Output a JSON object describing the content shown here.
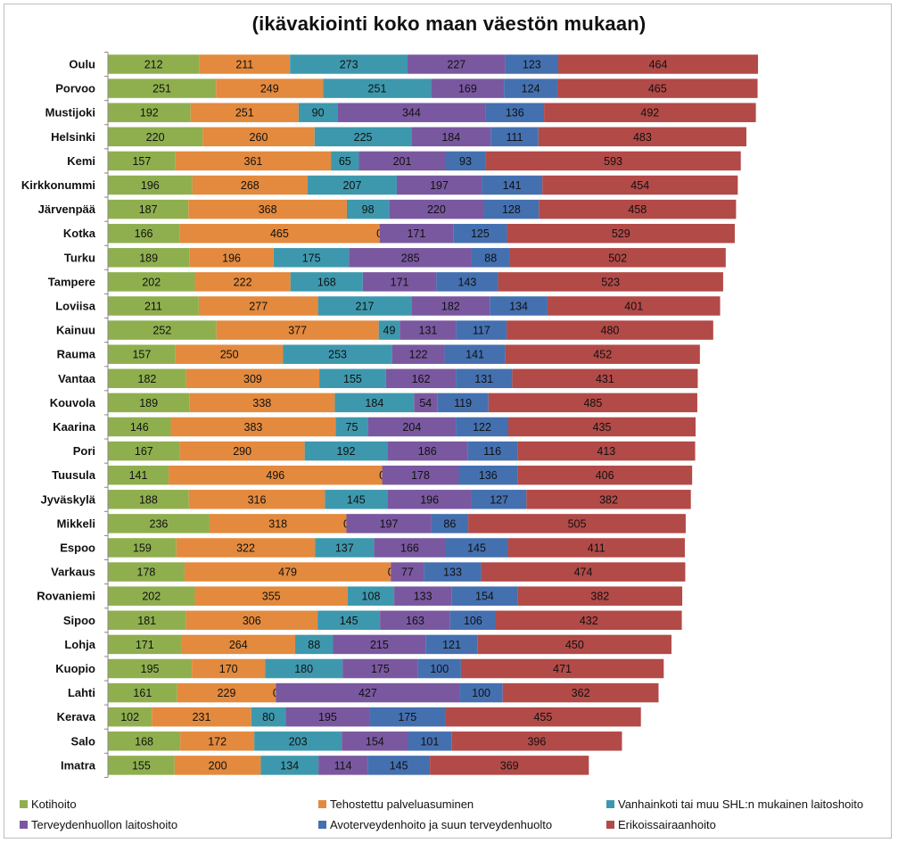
{
  "chart_data": {
    "type": "bar",
    "orientation": "horizontal",
    "stacked": true,
    "title": "(ikävakiointi koko maan väestön mukaan)",
    "categories": [
      "Oulu",
      "Porvoo",
      "Mustijoki",
      "Helsinki",
      "Kemi",
      "Kirkkonummi",
      "Järvenpää",
      "Kotka",
      "Turku",
      "Tampere",
      "Loviisa",
      "Kainuu",
      "Rauma",
      "Vantaa",
      "Kouvola",
      "Kaarina",
      "Pori",
      "Tuusula",
      "Jyväskylä",
      "Mikkeli",
      "Espoo",
      "Varkaus",
      "Rovaniemi",
      "Sipoo",
      "Lohja",
      "Kuopio",
      "Lahti",
      "Kerava",
      "Salo",
      "Imatra"
    ],
    "series": [
      {
        "name": "Kotihoito",
        "color": "#8faf4f",
        "values": [
          212,
          251,
          192,
          220,
          157,
          196,
          187,
          166,
          189,
          202,
          211,
          252,
          157,
          182,
          189,
          146,
          167,
          141,
          188,
          236,
          159,
          178,
          202,
          181,
          171,
          195,
          161,
          102,
          168,
          155
        ]
      },
      {
        "name": "Tehostettu palveluasuminen",
        "color": "#e38a3e",
        "values": [
          211,
          249,
          251,
          260,
          361,
          268,
          368,
          465,
          196,
          222,
          277,
          377,
          250,
          309,
          338,
          383,
          290,
          496,
          316,
          318,
          322,
          479,
          355,
          306,
          264,
          170,
          229,
          231,
          172,
          200
        ]
      },
      {
        "name": "Vanhainkoti tai muu SHL:n mukainen laitoshoito",
        "color": "#3e98ad",
        "values": [
          273,
          251,
          90,
          225,
          65,
          207,
          98,
          0,
          175,
          168,
          217,
          49,
          253,
          155,
          184,
          75,
          192,
          0,
          145,
          0,
          137,
          0,
          108,
          145,
          88,
          180,
          0,
          80,
          203,
          134
        ]
      },
      {
        "name": "Terveydenhuollon laitoshoito",
        "color": "#7a58a0",
        "values": [
          227,
          169,
          344,
          184,
          201,
          197,
          220,
          171,
          285,
          171,
          182,
          131,
          122,
          162,
          54,
          204,
          186,
          178,
          196,
          197,
          166,
          77,
          133,
          163,
          215,
          175,
          427,
          195,
          154,
          114
        ]
      },
      {
        "name": "Avoterveydenhoito ja suun terveydenhuolto",
        "color": "#4470b0",
        "values": [
          123,
          124,
          136,
          111,
          93,
          141,
          128,
          125,
          88,
          143,
          134,
          117,
          141,
          131,
          119,
          122,
          116,
          136,
          127,
          86,
          145,
          133,
          154,
          106,
          121,
          100,
          100,
          175,
          101,
          145
        ]
      },
      {
        "name": "Erikoissairaanhoito",
        "color": "#b24a48",
        "values": [
          464,
          465,
          492,
          483,
          593,
          454,
          458,
          529,
          502,
          523,
          401,
          480,
          452,
          431,
          485,
          435,
          413,
          406,
          382,
          505,
          411,
          474,
          382,
          432,
          450,
          471,
          362,
          455,
          396,
          369
        ]
      }
    ],
    "legend_position": "bottom",
    "grid": false
  }
}
